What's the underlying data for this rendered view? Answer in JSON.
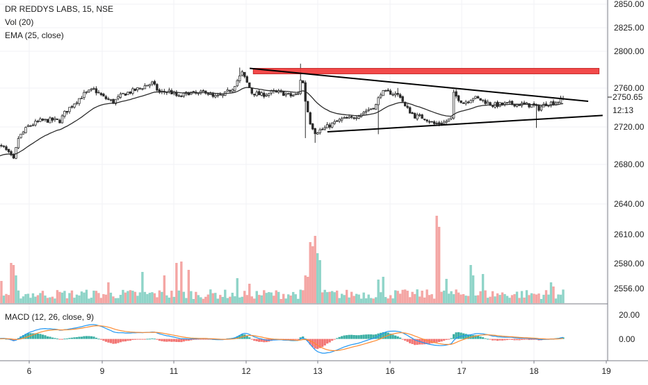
{
  "legend": {
    "symbol": "DR REDDYS LABS, 15, NSE",
    "volume": "Vol (20)",
    "ema": "EMA (25, close)",
    "macd": "MACD (12, 26, close, 9)"
  },
  "price_tags": {
    "last_price": "2750.65",
    "countdown": "12:13"
  },
  "colors": {
    "up": "#26a69a",
    "down": "#ef5350",
    "vol_up": "#8fd4c8",
    "vol_down": "#f4a6a4",
    "ema": "#2b2b2b",
    "macd_line": "#2196f3",
    "signal_line": "#ff8a30",
    "resistance_zone": "#f23b3b",
    "trendline": "#000000"
  },
  "chart_data": [
    {
      "type": "candlestick",
      "title": "DR REDDYS LABS, 15, NSE",
      "x_ticks": [
        "6",
        "9",
        "11",
        "12",
        "13",
        "16",
        "17",
        "18",
        "19"
      ],
      "y_ticks": [
        "2850.00",
        "2825.00",
        "2800.00",
        "2760.00",
        "2720.00",
        "2680.00",
        "2640.00"
      ],
      "ylim": [
        2625,
        2855
      ],
      "ema_label": "EMA (25, close)",
      "last_price": 2750.65,
      "annotations": [
        {
          "kind": "zone",
          "from": [
            12.1,
            2789
          ],
          "to": [
            18.9,
            2782
          ]
        },
        {
          "kind": "trendline",
          "from": [
            12.05,
            2789
          ],
          "to": [
            18.75,
            2747
          ]
        },
        {
          "kind": "trendline",
          "from": [
            13.4,
            2708
          ],
          "to": [
            18.95,
            2729
          ]
        }
      ]
    },
    {
      "type": "bar",
      "title": "Vol (20)",
      "y_ticks": [
        "2610.00",
        "2580.00",
        "2556.00"
      ]
    },
    {
      "type": "line",
      "title": "MACD (12, 26, close, 9)",
      "y_ticks": [
        "20.00",
        "0.00"
      ],
      "ylim": [
        -26,
        22
      ]
    }
  ]
}
